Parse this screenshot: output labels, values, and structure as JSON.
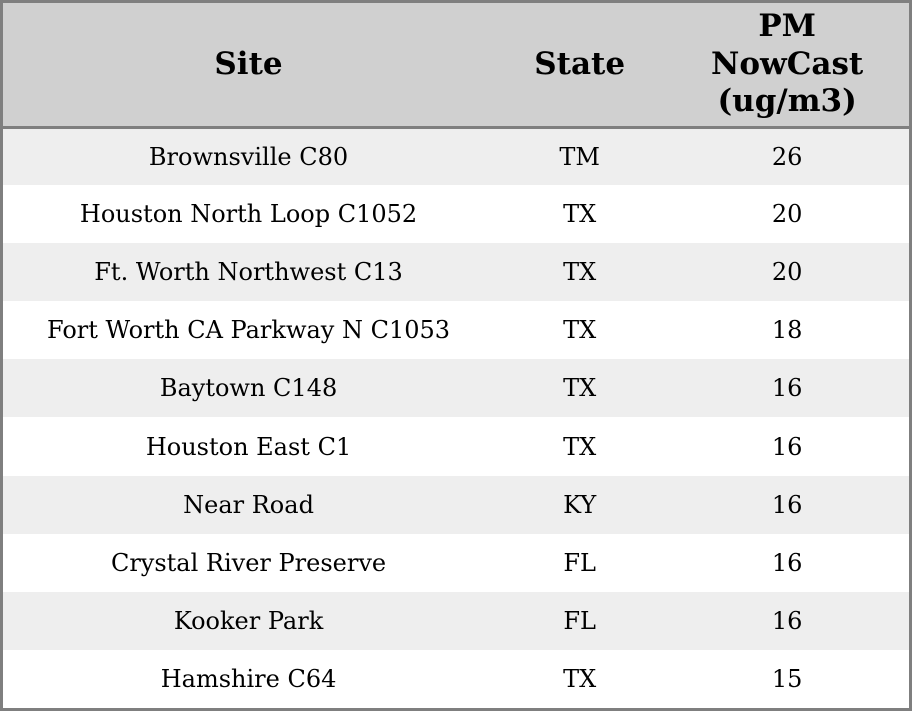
{
  "chart_data": {
    "type": "table",
    "title": "",
    "columns": [
      "Site",
      "State",
      "PM NowCast (ug/m3)"
    ],
    "header_labels": [
      "Site",
      "State",
      "PM\nNowCast\n(ug/m3)"
    ],
    "rows": [
      {
        "site": "Brownsville C80",
        "state": "TM",
        "pm_nowcast": 26
      },
      {
        "site": "Houston North Loop C1052",
        "state": "TX",
        "pm_nowcast": 20
      },
      {
        "site": "Ft. Worth Northwest C13",
        "state": "TX",
        "pm_nowcast": 20
      },
      {
        "site": "Fort Worth CA Parkway N C1053",
        "state": "TX",
        "pm_nowcast": 18
      },
      {
        "site": "Baytown C148",
        "state": "TX",
        "pm_nowcast": 16
      },
      {
        "site": "Houston East C1",
        "state": "TX",
        "pm_nowcast": 16
      },
      {
        "site": "Near Road",
        "state": "KY",
        "pm_nowcast": 16
      },
      {
        "site": "Crystal River Preserve",
        "state": "FL",
        "pm_nowcast": 16
      },
      {
        "site": "Kooker Park",
        "state": "FL",
        "pm_nowcast": 16
      },
      {
        "site": "Hamshire C64",
        "state": "TX",
        "pm_nowcast": 15
      }
    ],
    "layout": {
      "striped": true,
      "first_body_row_striped": true,
      "all_cells_centered": true
    }
  },
  "colors": {
    "header_bg": "#d0d0d0",
    "stripe_bg": "#eeeeee",
    "row_bg": "#ffffff",
    "border": "#7f7f7f",
    "text": "#000000"
  }
}
